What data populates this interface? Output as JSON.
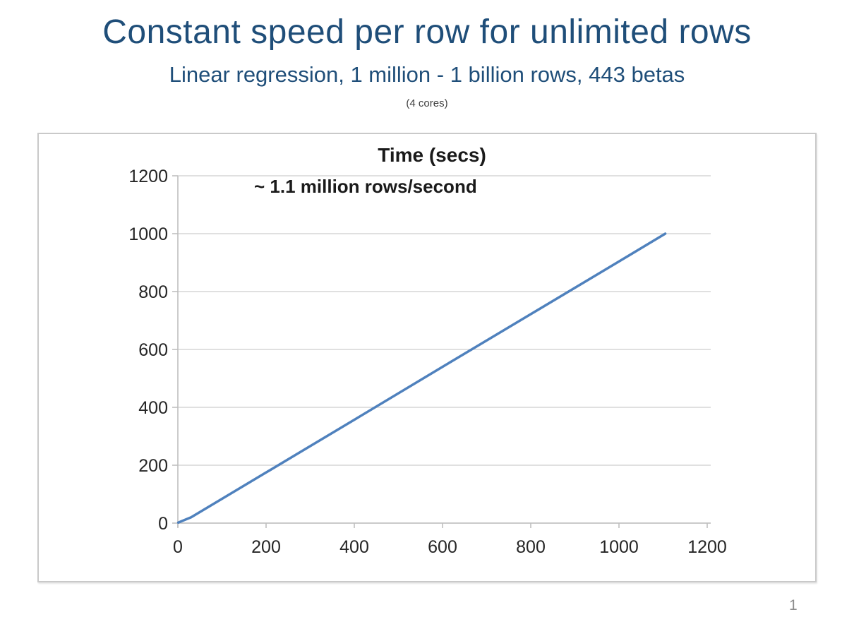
{
  "slide": {
    "title": "Constant speed per row for unlimited rows",
    "subtitle": "Linear regression, 1 million - 1 billion rows, 443 betas",
    "caption": "(4 cores)",
    "page_number": "1"
  },
  "chart_data": {
    "type": "line",
    "title": "Time (secs)",
    "annotation": "~ 1.1 million rows/second",
    "xlabel": "",
    "ylabel": "",
    "xlim": [
      0,
      1200
    ],
    "ylim": [
      0,
      1200
    ],
    "x_ticks": [
      0,
      200,
      400,
      600,
      800,
      1000,
      1200
    ],
    "y_ticks": [
      0,
      200,
      400,
      600,
      800,
      1000,
      1200
    ],
    "grid": "horizontal",
    "legend": "none",
    "series": [
      {
        "name": "Time (secs)",
        "points": [
          [
            1,
            2
          ],
          [
            30,
            20
          ],
          [
            200,
            175
          ],
          [
            400,
            357
          ],
          [
            600,
            540
          ],
          [
            800,
            722
          ],
          [
            1000,
            904
          ],
          [
            1105,
            1000
          ]
        ]
      }
    ],
    "derived_rate": "≈1.1 million rows per second (1105M rows in ~1000 s)"
  },
  "colors": {
    "title_text": "#1f4e79",
    "subtitle_text": "#1f4e79",
    "caption_text": "#404040",
    "line": "#4f81bd",
    "gridline": "#d6d6d6",
    "axis_line": "#bfbfbf",
    "tick_label": "#262626",
    "chart_border": "#c9c9c9",
    "page_number_text": "#8c8c8c"
  }
}
